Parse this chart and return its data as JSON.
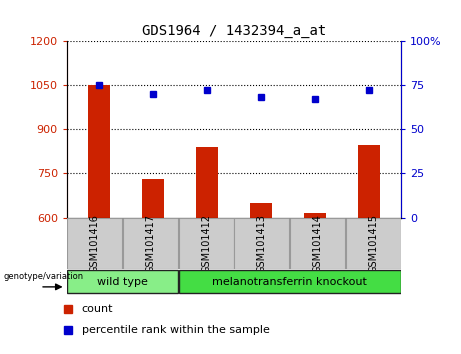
{
  "title": "GDS1964 / 1432394_a_at",
  "samples": [
    "GSM101416",
    "GSM101417",
    "GSM101412",
    "GSM101413",
    "GSM101414",
    "GSM101415"
  ],
  "bar_values": [
    1050,
    730,
    840,
    650,
    615,
    845
  ],
  "percentile_values": [
    75,
    70,
    72,
    68,
    67,
    72
  ],
  "bar_color": "#cc2200",
  "point_color": "#0000cc",
  "ylim_left": [
    600,
    1200
  ],
  "ylim_right": [
    0,
    100
  ],
  "yticks_left": [
    600,
    750,
    900,
    1050,
    1200
  ],
  "yticks_right": [
    0,
    25,
    50,
    75,
    100
  ],
  "ytick_right_labels": [
    "0",
    "25",
    "50",
    "75",
    "100%"
  ],
  "groups": [
    {
      "label": "wild type",
      "indices": [
        0,
        1
      ],
      "color": "#88ee88"
    },
    {
      "label": "melanotransferrin knockout",
      "indices": [
        2,
        3,
        4,
        5
      ],
      "color": "#44dd44"
    }
  ],
  "genotype_label": "genotype/variation",
  "legend_count_label": "count",
  "legend_percentile_label": "percentile rank within the sample",
  "tick_color_left": "#cc2200",
  "tick_color_right": "#0000cc",
  "label_area_color": "#cccccc",
  "group_border_color": "#222222",
  "fig_width": 4.61,
  "fig_height": 3.54,
  "dpi": 100
}
